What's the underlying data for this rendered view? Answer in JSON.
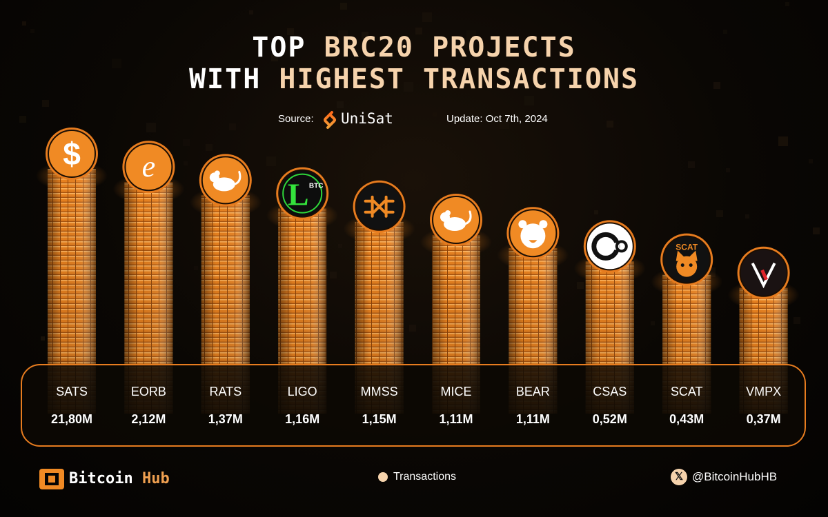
{
  "title": {
    "line1_prefix": "TOP ",
    "line1_highlight": "BRC20 PROJECTS",
    "line2_prefix": "WITH ",
    "line2_highlight": "HIGHEST TRANSACTIONS"
  },
  "source": {
    "label": "Source:",
    "name": "UniSat"
  },
  "update": "Update: Oct 7th, 2024",
  "colors": {
    "accent": "#F08A24",
    "highlight": "#F6D3AC",
    "border": "#E77C1F",
    "background": "#050403"
  },
  "chart_data": {
    "type": "bar",
    "categories": [
      "SATS",
      "EORB",
      "RATS",
      "LIGO",
      "MMSS",
      "MICE",
      "BEAR",
      "CSAS",
      "SCAT",
      "VMPX"
    ],
    "value_labels": [
      "21,80M",
      "2,12M",
      "1,37M",
      "1,16M",
      "1,15M",
      "1,11M",
      "1,11M",
      "0,52M",
      "0,43M",
      "0,37M"
    ],
    "values": [
      21.8,
      2.12,
      1.37,
      1.16,
      1.15,
      1.11,
      1.11,
      0.52,
      0.43,
      0.37
    ],
    "unit": "M",
    "legend": [
      {
        "name": "Transactions",
        "color": "#F6D3AC"
      }
    ],
    "icons": [
      "dollar-icon",
      "eorb-e-icon",
      "rat-icon",
      "ligo-btc-icon",
      "mmss-logo-icon",
      "mouse-icon",
      "bear-icon",
      "csas-logo-icon",
      "scat-cat-icon",
      "vmpx-v-icon"
    ],
    "icon_texts": [
      "",
      "",
      "",
      "BTC",
      "",
      "",
      "",
      "",
      "SCAT",
      ""
    ]
  },
  "footer": {
    "brand_part1": "Bitcoin",
    "brand_part2": " Hub",
    "legend_label": "Transactions",
    "social_icon": "x-icon",
    "social_icon_glyph": "𝕏",
    "handle": "@BitcoinHubHB"
  }
}
